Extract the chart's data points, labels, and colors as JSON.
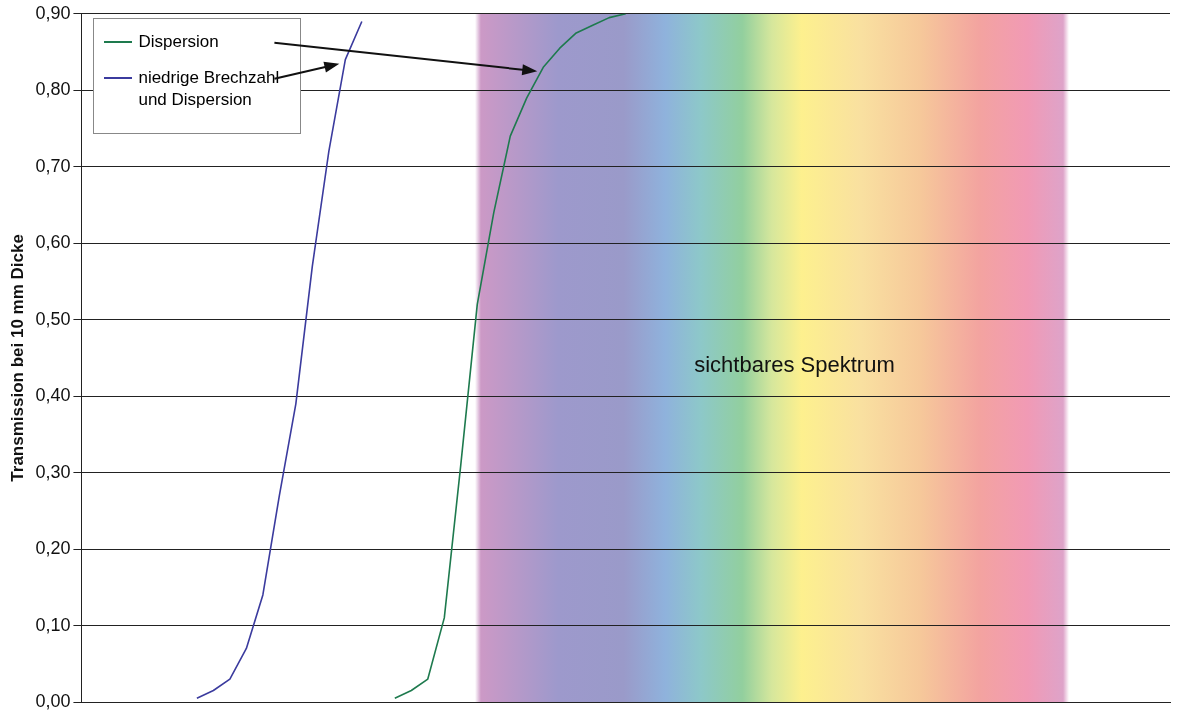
{
  "chart_data": {
    "type": "line",
    "ylabel": "Transmission bei 10 mm Dicke",
    "categories": [
      null,
      null,
      null,
      null,
      null,
      null,
      null,
      null,
      null,
      null,
      null,
      null,
      null,
      null,
      null,
      null,
      null,
      null,
      null,
      null,
      null,
      null,
      null,
      null,
      null,
      null,
      null,
      null,
      null,
      null,
      null,
      null,
      null,
      null,
      null,
      null,
      null,
      null,
      null,
      null,
      null,
      null,
      null,
      null,
      null,
      null,
      null,
      null,
      null,
      null,
      null,
      null,
      null,
      null,
      null,
      null,
      null,
      null,
      null,
      null,
      null,
      null,
      null,
      null,
      null,
      null,
      null
    ],
    "series": [
      {
        "name": "Dispersion",
        "color": "#1e7a4e",
        "values": [
          null,
          null,
          null,
          null,
          null,
          null,
          null,
          null,
          null,
          null,
          null,
          null,
          null,
          null,
          null,
          null,
          null,
          null,
          null,
          0.005,
          0.015,
          0.03,
          0.11,
          0.31,
          0.52,
          0.64,
          0.74,
          0.79,
          0.83,
          0.855,
          0.875,
          0.885,
          0.895,
          0.9,
          null,
          null,
          null,
          null,
          null,
          null,
          null,
          null,
          null,
          null,
          null,
          null,
          null,
          null,
          null,
          null,
          null,
          null,
          null,
          null,
          null,
          null,
          null,
          null,
          null,
          null,
          null,
          null,
          null,
          null,
          null,
          null,
          null
        ]
      },
      {
        "name": "niedrige Brechzahl und Dispersion",
        "color": "#3b3b9e",
        "values": [
          null,
          null,
          null,
          null,
          null,
          null,
          null,
          0.005,
          0.015,
          0.03,
          0.07,
          0.14,
          0.27,
          0.39,
          0.57,
          0.72,
          0.84,
          0.89,
          null,
          null,
          null,
          null,
          null,
          null,
          null,
          null,
          null,
          null,
          null,
          null,
          null,
          null,
          null,
          null,
          null,
          null,
          null,
          null,
          null,
          null,
          null,
          null,
          null,
          null,
          null,
          null,
          null,
          null,
          null,
          null,
          null,
          null,
          null,
          null,
          null,
          null,
          null,
          null,
          null,
          null,
          null,
          null,
          null,
          null,
          null,
          null,
          null
        ]
      }
    ],
    "ylim": [
      0,
      0.9
    ],
    "yticks": [
      {
        "value": 0,
        "label": "0,00"
      },
      {
        "value": 0.1,
        "label": "0,10"
      },
      {
        "value": 0.2,
        "label": "0,20"
      },
      {
        "value": 0.3,
        "label": "0,30"
      },
      {
        "value": 0.4,
        "label": "0,40"
      },
      {
        "value": 0.5,
        "label": "0,50"
      },
      {
        "value": 0.6,
        "label": "0,60"
      },
      {
        "value": 0.7,
        "label": "0,70"
      },
      {
        "value": 0.8,
        "label": "0,80"
      },
      {
        "value": 0.9,
        "label": "0,90"
      }
    ],
    "grid": "y",
    "tick_labels": "y",
    "legend": "top left",
    "marker": "none",
    "line_style": "solid",
    "annotations": [
      "sichtbares Spektrum"
    ]
  }
}
